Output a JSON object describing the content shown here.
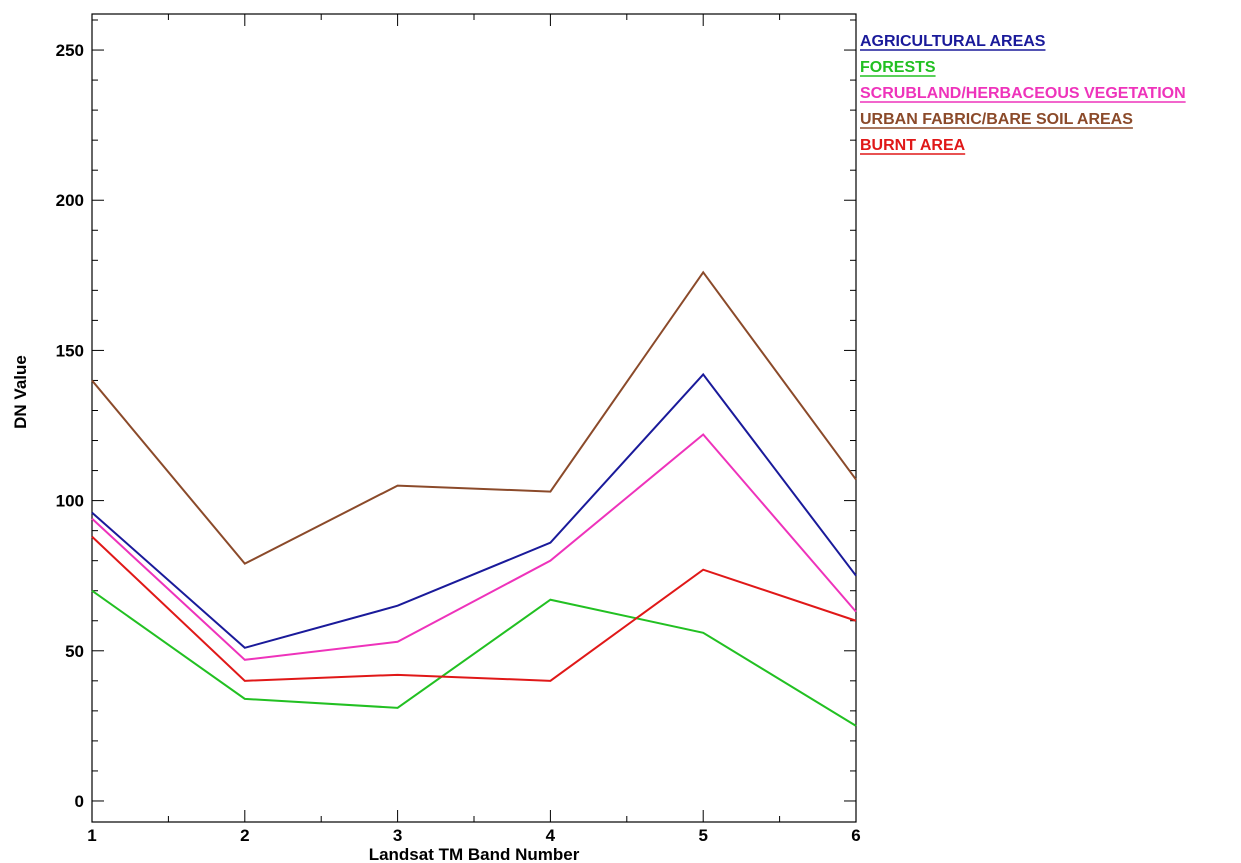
{
  "chart_data": {
    "type": "line",
    "title": "",
    "xlabel": "Landsat TM Band Number",
    "ylabel": "DN Value",
    "x": [
      1,
      2,
      3,
      4,
      5,
      6
    ],
    "xlim": [
      1,
      6
    ],
    "ylim": [
      -7,
      262
    ],
    "x_ticks": [
      "1",
      "2",
      "3",
      "4",
      "5",
      "6"
    ],
    "y_ticks": [
      "0",
      "50",
      "100",
      "150",
      "200",
      "250"
    ],
    "grid": false,
    "legend_position": "right-top",
    "series": [
      {
        "name": "AGRICULTURAL AREAS",
        "color": "#1a1a9a",
        "values": [
          96,
          51,
          65,
          86,
          142,
          75
        ]
      },
      {
        "name": "FORESTS",
        "color": "#22c022",
        "values": [
          70,
          34,
          31,
          67,
          56,
          25
        ]
      },
      {
        "name": "SCRUBLAND/HERBACEOUS VEGETATION",
        "color": "#ee33bb",
        "values": [
          94,
          47,
          53,
          80,
          122,
          63
        ]
      },
      {
        "name": "URBAN FABRIC/BARE SOIL AREAS",
        "color": "#8b4a2a",
        "values": [
          140,
          79,
          105,
          103,
          176,
          107
        ]
      },
      {
        "name": "BURNT AREA",
        "color": "#e01818",
        "values": [
          88,
          40,
          42,
          40,
          77,
          60
        ]
      }
    ]
  }
}
